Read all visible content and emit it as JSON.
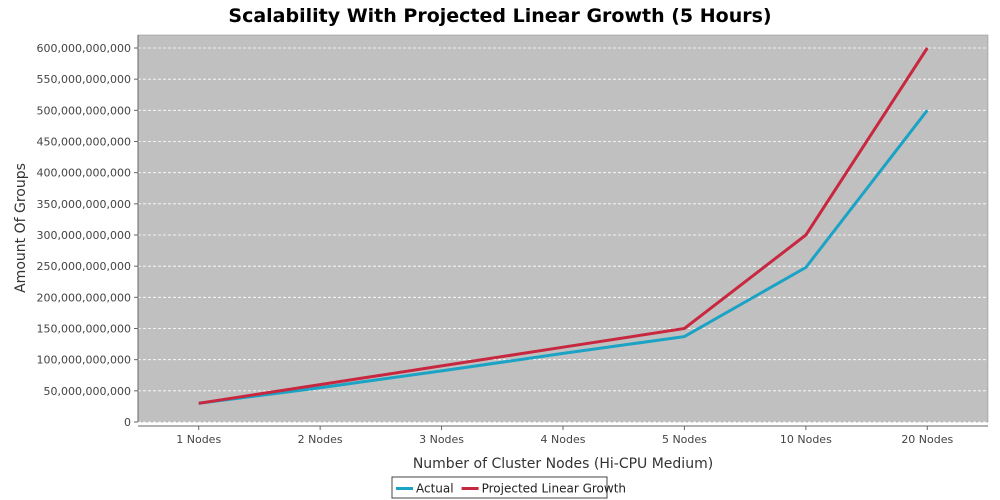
{
  "chart_data": {
    "type": "line",
    "title": "Scalability With Projected Linear Growth (5 Hours)",
    "xlabel": "Number of Cluster Nodes (Hi-CPU Medium)",
    "ylabel": "Amount Of Groups",
    "categories": [
      "1 Nodes",
      "2 Nodes",
      "3 Nodes",
      "4 Nodes",
      "5 Nodes",
      "10 Nodes",
      "20 Nodes"
    ],
    "ylim": [
      0,
      600000000000
    ],
    "yticks": [
      0,
      50000000000,
      100000000000,
      150000000000,
      200000000000,
      250000000000,
      300000000000,
      350000000000,
      400000000000,
      450000000000,
      500000000000,
      550000000000,
      600000000000
    ],
    "ytick_labels": [
      "0",
      "50,000,000,000",
      "100,000,000,000",
      "150,000,000,000",
      "200,000,000,000",
      "250,000,000,000",
      "300,000,000,000",
      "350,000,000,000",
      "400,000,000,000",
      "450,000,000,000",
      "500,000,000,000",
      "550,000,000,000",
      "600,000,000,000"
    ],
    "grid": true,
    "legend_position": "bottom",
    "series": [
      {
        "name": "Actual",
        "color": "#1aa3c4",
        "values": [
          30000000000,
          55000000000,
          82000000000,
          110000000000,
          137000000000,
          248000000000,
          500000000000
        ]
      },
      {
        "name": "Projected Linear Growth",
        "color": "#c8283f",
        "values": [
          30000000000,
          60000000000,
          90000000000,
          120000000000,
          150000000000,
          300000000000,
          600000000000
        ]
      }
    ],
    "colors": {
      "plot_background": "#c0c0c0",
      "gridline": "#ffffff"
    }
  }
}
